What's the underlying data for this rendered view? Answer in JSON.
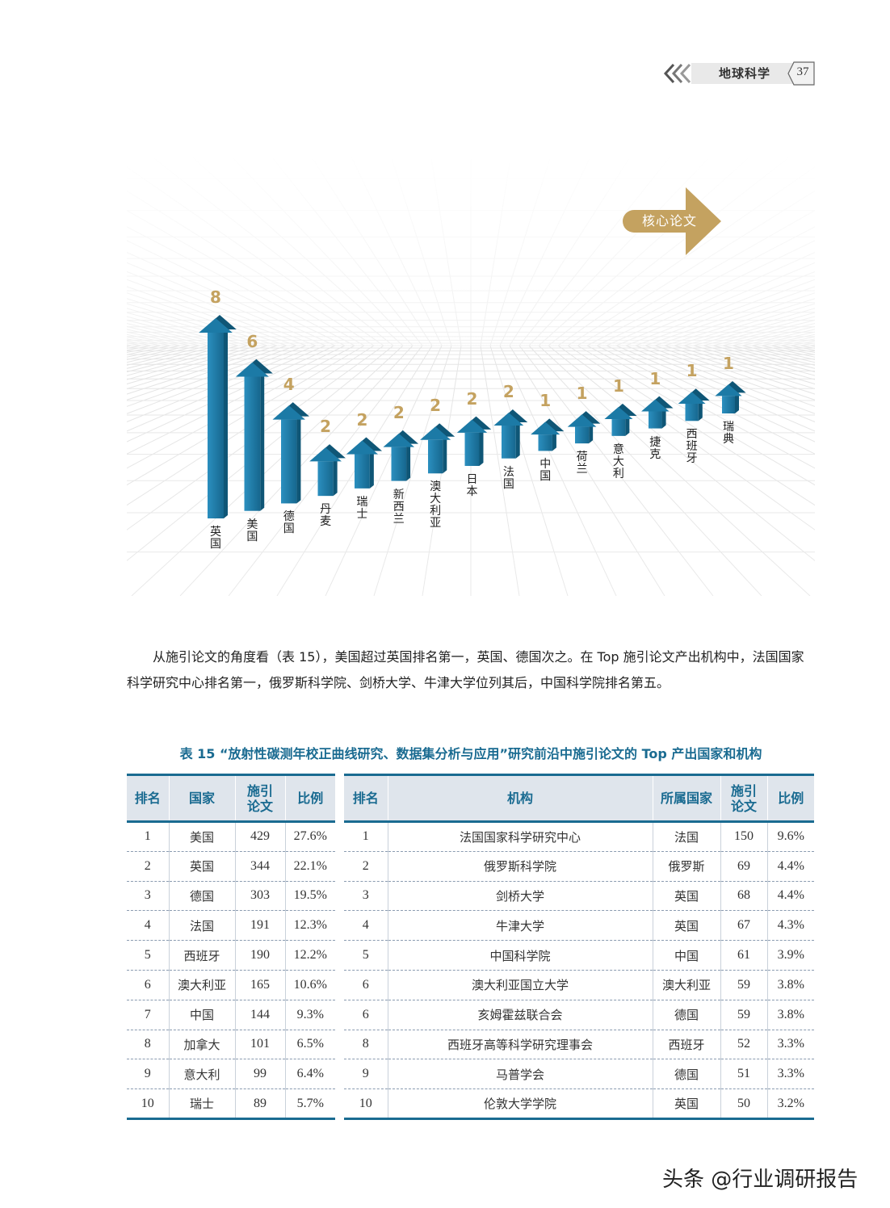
{
  "header": {
    "section": "地球科学",
    "page": "37"
  },
  "chart_data": {
    "type": "bar",
    "title": "核心论文",
    "categories": [
      "英国",
      "美国",
      "德国",
      "丹麦",
      "瑞士",
      "新西兰",
      "澳大利亚",
      "日本",
      "法国",
      "中国",
      "荷兰",
      "意大利",
      "捷克",
      "西班牙",
      "瑞典"
    ],
    "values": [
      8,
      6,
      4,
      2,
      2,
      2,
      2,
      2,
      2,
      1,
      1,
      1,
      1,
      1,
      1
    ],
    "xlabel": "",
    "ylabel": "",
    "colors": {
      "bar": "#1c7aa6",
      "bar_dark": "#0f5676",
      "value": "#c4a260",
      "badge": "#c4a260"
    }
  },
  "paragraph": "从施引论文的角度看（表 15），美国超过英国排名第一，英国、德国次之。在 Top 施引论文产出机构中，法国国家科学研究中心排名第一，俄罗斯科学院、剑桥大学、牛津大学位列其后，中国科学院排名第五。",
  "table_caption": "表 15 “放射性碳测年校正曲线研究、数据集分析与应用”研究前沿中施引论文的 Top 产出国家和机构",
  "country_table": {
    "headers": [
      "排名",
      "国家",
      "施引\n论文",
      "比例"
    ],
    "rows": [
      [
        "1",
        "美国",
        "429",
        "27.6%"
      ],
      [
        "2",
        "英国",
        "344",
        "22.1%"
      ],
      [
        "3",
        "德国",
        "303",
        "19.5%"
      ],
      [
        "4",
        "法国",
        "191",
        "12.3%"
      ],
      [
        "5",
        "西班牙",
        "190",
        "12.2%"
      ],
      [
        "6",
        "澳大利亚",
        "165",
        "10.6%"
      ],
      [
        "7",
        "中国",
        "144",
        "9.3%"
      ],
      [
        "8",
        "加拿大",
        "101",
        "6.5%"
      ],
      [
        "9",
        "意大利",
        "99",
        "6.4%"
      ],
      [
        "10",
        "瑞士",
        "89",
        "5.7%"
      ]
    ]
  },
  "institution_table": {
    "headers": [
      "排名",
      "机构",
      "所属国家",
      "施引\n论文",
      "比例"
    ],
    "rows": [
      [
        "1",
        "法国国家科学研究中心",
        "法国",
        "150",
        "9.6%"
      ],
      [
        "2",
        "俄罗斯科学院",
        "俄罗斯",
        "69",
        "4.4%"
      ],
      [
        "3",
        "剑桥大学",
        "英国",
        "68",
        "4.4%"
      ],
      [
        "4",
        "牛津大学",
        "英国",
        "67",
        "4.3%"
      ],
      [
        "5",
        "中国科学院",
        "中国",
        "61",
        "3.9%"
      ],
      [
        "6",
        "澳大利亚国立大学",
        "澳大利亚",
        "59",
        "3.8%"
      ],
      [
        "6",
        "亥姆霍兹联合会",
        "德国",
        "59",
        "3.8%"
      ],
      [
        "8",
        "西班牙高等科学研究理事会",
        "西班牙",
        "52",
        "3.3%"
      ],
      [
        "9",
        "马普学会",
        "德国",
        "51",
        "3.3%"
      ],
      [
        "10",
        "伦敦大学学院",
        "英国",
        "50",
        "3.2%"
      ]
    ]
  },
  "watermark": "头条 @行业调研报告"
}
